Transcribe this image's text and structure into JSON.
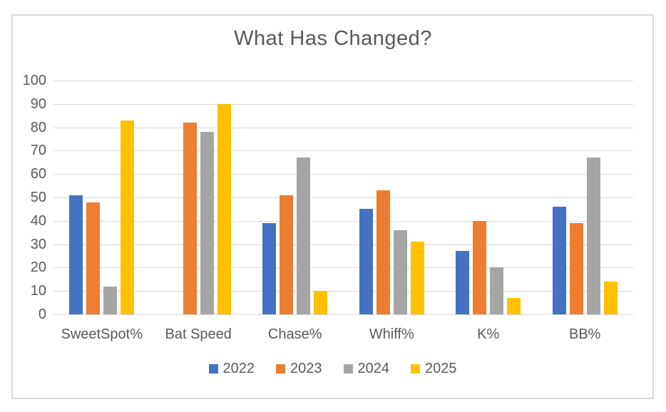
{
  "chart_data": {
    "type": "bar",
    "title": "What Has Changed?",
    "categories": [
      "SweetSpot%",
      "Bat Speed",
      "Chase%",
      "Whiff%",
      "K%",
      "BB%"
    ],
    "series": [
      {
        "name": "2022",
        "color": "#4472C4",
        "values": [
          51,
          null,
          39,
          45,
          27,
          46
        ]
      },
      {
        "name": "2023",
        "color": "#ED7D31",
        "values": [
          48,
          82,
          51,
          53,
          40,
          39
        ]
      },
      {
        "name": "2024",
        "color": "#A5A5A5",
        "values": [
          12,
          78,
          67,
          36,
          20,
          67
        ]
      },
      {
        "name": "2025",
        "color": "#FFC000",
        "values": [
          83,
          90,
          10,
          31,
          7,
          14
        ]
      }
    ],
    "xlabel": "",
    "ylabel": "",
    "ylim": [
      0,
      100
    ],
    "ytick_step": 10,
    "ytick_labels": [
      "0",
      "10",
      "20",
      "30",
      "40",
      "50",
      "60",
      "70",
      "80",
      "90",
      "100"
    ],
    "grid": true,
    "legend_position": "bottom"
  },
  "styles": {
    "text_color": "#595959",
    "gridline_color": "#d9d9d9",
    "frame_border_color": "#d9d9d9",
    "background_color": "#ffffff"
  }
}
